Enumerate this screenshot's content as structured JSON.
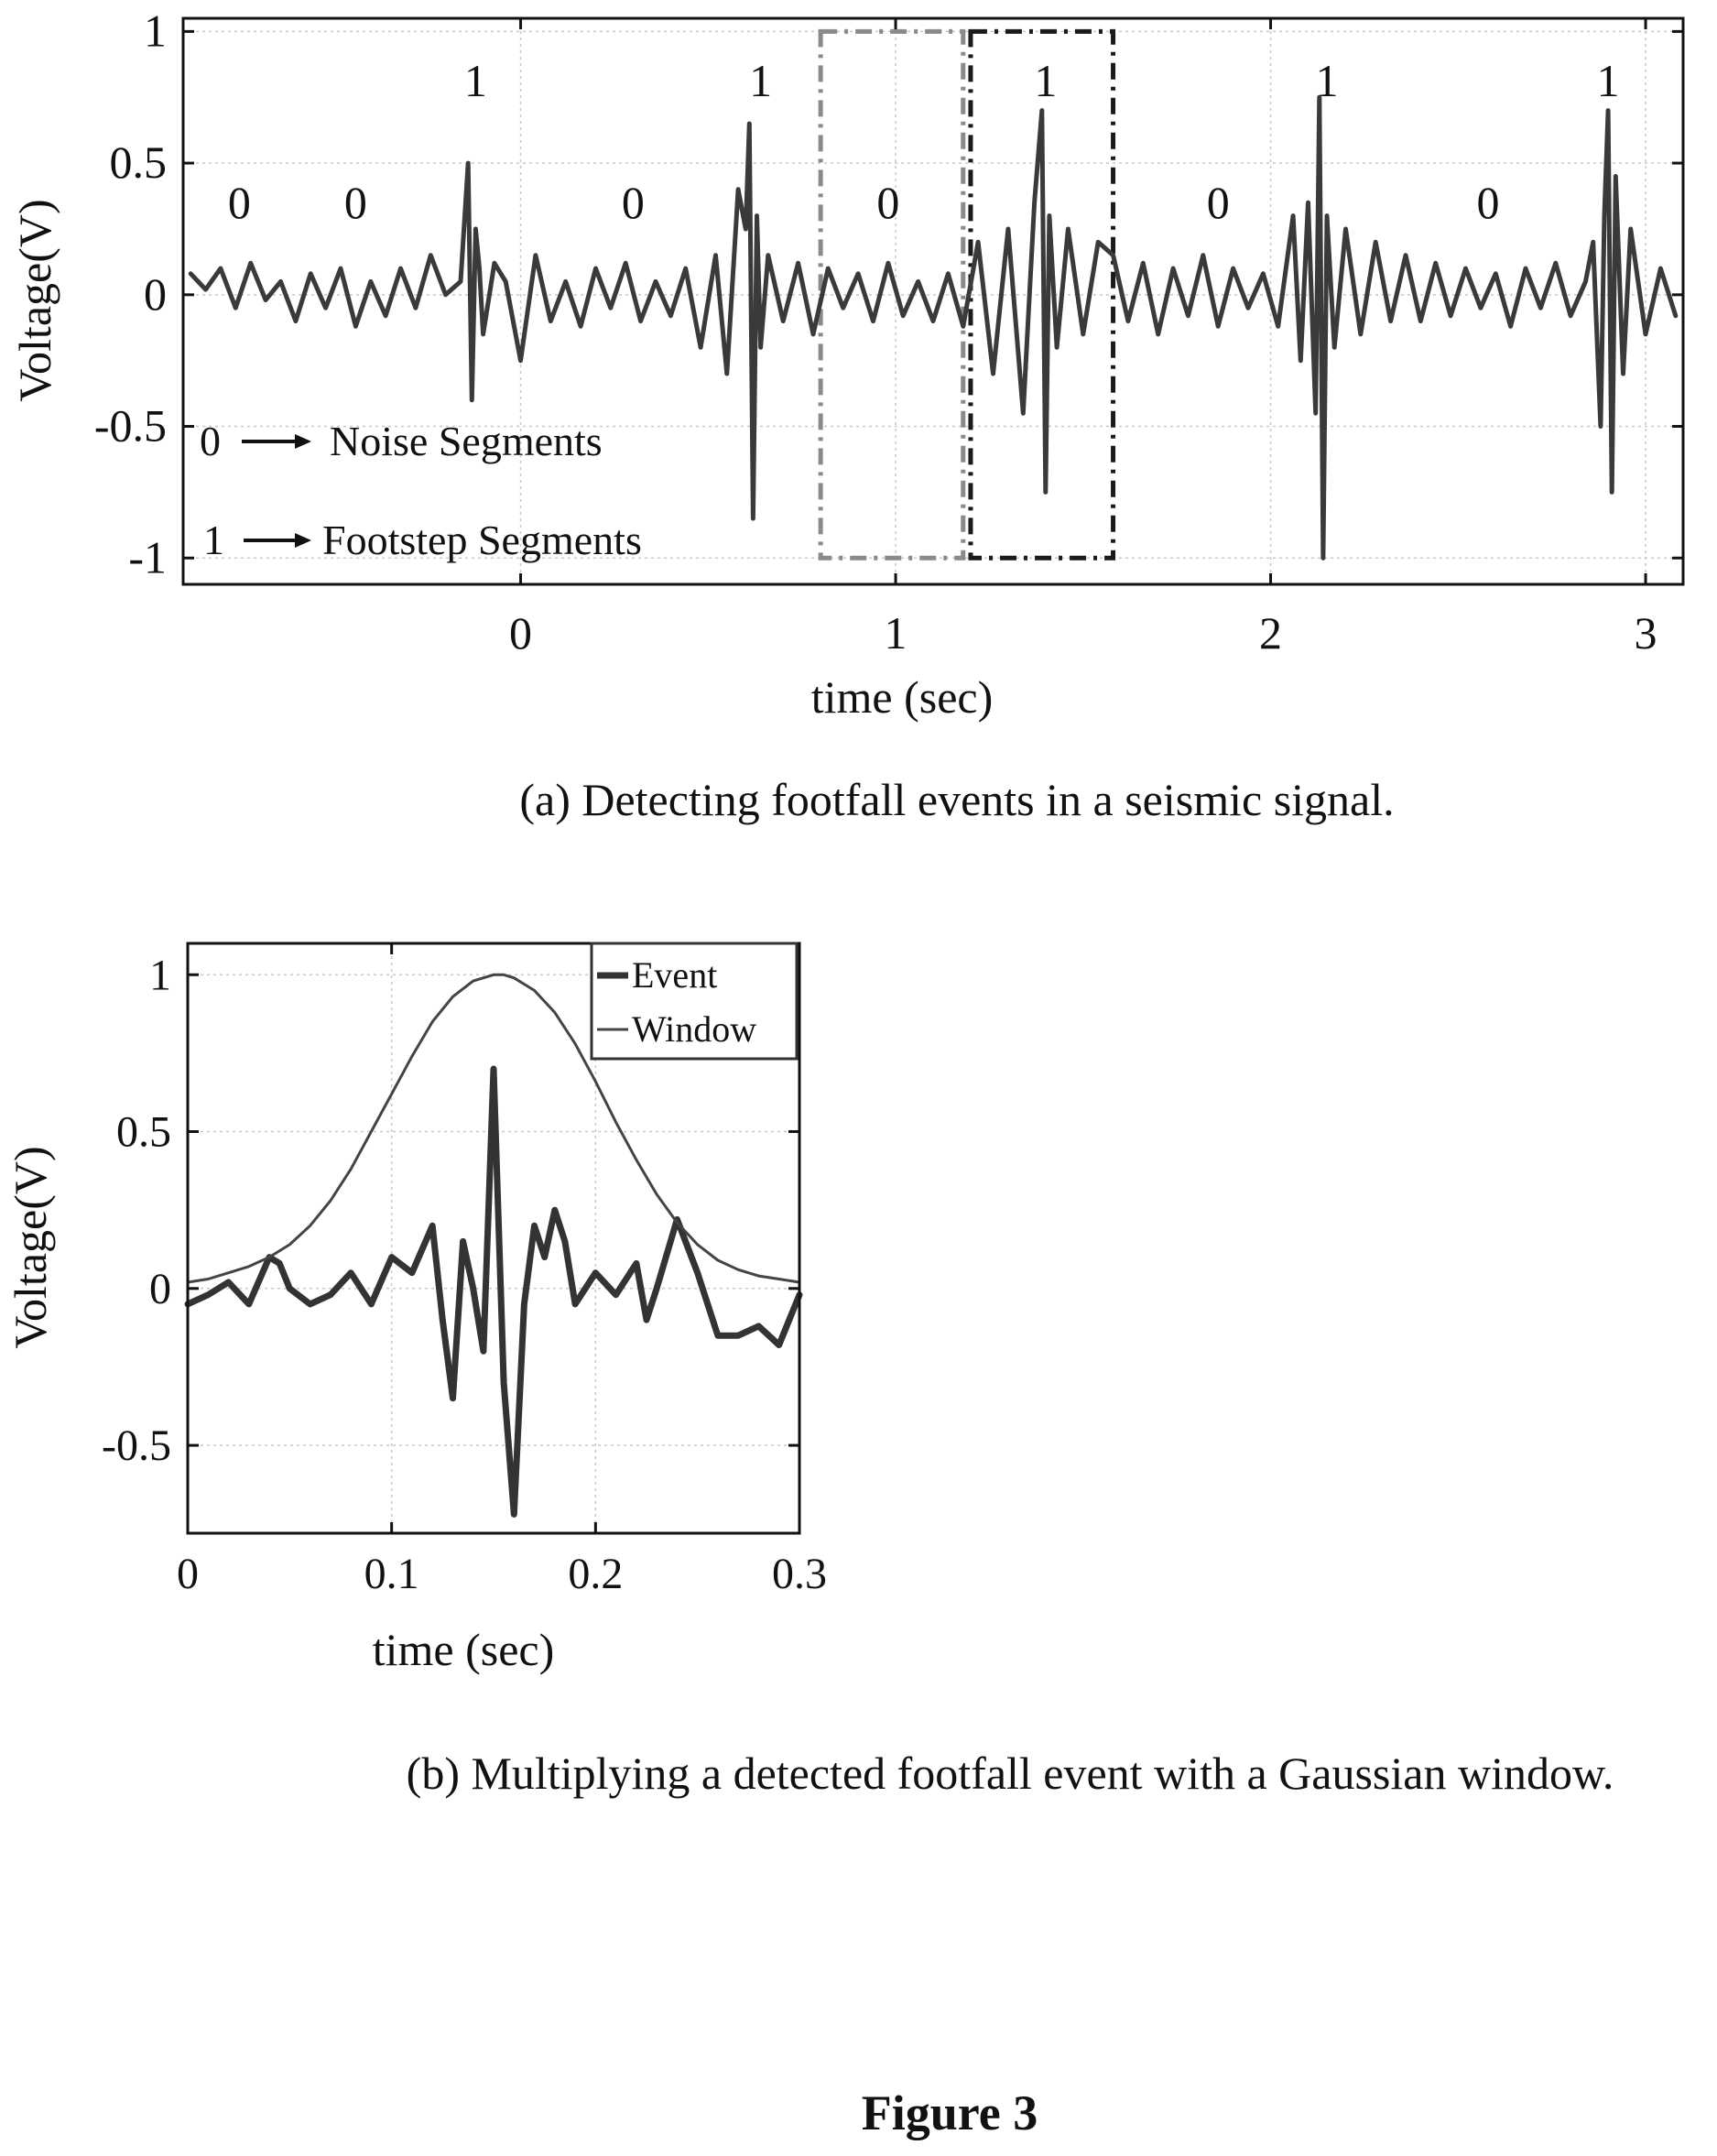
{
  "figure_label": "Figure 3",
  "chart_data": [
    {
      "type": "line",
      "caption": "(a) Detecting footfall events in a seismic signal.",
      "xlabel": "time (sec)",
      "ylabel": "Voltage(V)",
      "xlim": [
        -0.9,
        3.1
      ],
      "ylim": [
        -1.1,
        1.05
      ],
      "xticks": [
        0,
        1,
        2,
        3
      ],
      "xtick_labels": [
        "0",
        "1",
        "2",
        "3"
      ],
      "yticks": [
        1,
        0.5,
        0,
        -0.5,
        -1
      ],
      "ytick_labels": [
        "1",
        "0.5",
        "0",
        "-0.5",
        "-1"
      ],
      "grid": true,
      "series": [
        {
          "color": "#3a3a3a",
          "x": [
            -0.88,
            -0.84,
            -0.8,
            -0.76,
            -0.72,
            -0.68,
            -0.64,
            -0.6,
            -0.56,
            -0.52,
            -0.48,
            -0.44,
            -0.4,
            -0.36,
            -0.32,
            -0.28,
            -0.24,
            -0.2,
            -0.16,
            -0.14,
            -0.13,
            -0.12,
            -0.11,
            -0.1,
            -0.07,
            -0.04,
            0,
            0.04,
            0.08,
            0.12,
            0.16,
            0.2,
            0.24,
            0.28,
            0.32,
            0.36,
            0.4,
            0.44,
            0.48,
            0.52,
            0.55,
            0.58,
            0.6,
            0.61,
            0.62,
            0.63,
            0.64,
            0.66,
            0.7,
            0.74,
            0.78,
            0.82,
            0.86,
            0.9,
            0.94,
            0.98,
            1.02,
            1.06,
            1.1,
            1.14,
            1.18,
            1.22,
            1.26,
            1.3,
            1.34,
            1.37,
            1.39,
            1.4,
            1.41,
            1.43,
            1.46,
            1.5,
            1.54,
            1.58,
            1.62,
            1.66,
            1.7,
            1.74,
            1.78,
            1.82,
            1.86,
            1.9,
            1.94,
            1.98,
            2.02,
            2.06,
            2.08,
            2.1,
            2.12,
            2.13,
            2.14,
            2.15,
            2.17,
            2.2,
            2.24,
            2.28,
            2.32,
            2.36,
            2.4,
            2.44,
            2.48,
            2.52,
            2.56,
            2.6,
            2.64,
            2.68,
            2.72,
            2.76,
            2.8,
            2.84,
            2.86,
            2.88,
            2.89,
            2.9,
            2.91,
            2.92,
            2.94,
            2.96,
            3,
            3.04,
            3.08
          ],
          "y": [
            0.08,
            0.02,
            0.1,
            -0.05,
            0.12,
            -0.02,
            0.05,
            -0.1,
            0.08,
            -0.05,
            0.1,
            -0.12,
            0.05,
            -0.08,
            0.1,
            -0.05,
            0.15,
            0.0,
            0.05,
            0.5,
            -0.4,
            0.25,
            0.1,
            -0.15,
            0.12,
            0.05,
            -0.25,
            0.15,
            -0.1,
            0.05,
            -0.12,
            0.1,
            -0.05,
            0.12,
            -0.1,
            0.05,
            -0.08,
            0.1,
            -0.2,
            0.15,
            -0.3,
            0.4,
            0.25,
            0.65,
            -0.85,
            0.3,
            -0.2,
            0.15,
            -0.1,
            0.12,
            -0.15,
            0.1,
            -0.05,
            0.08,
            -0.1,
            0.12,
            -0.08,
            0.05,
            -0.1,
            0.08,
            -0.12,
            0.2,
            -0.3,
            0.25,
            -0.45,
            0.35,
            0.7,
            -0.75,
            0.3,
            -0.2,
            0.25,
            -0.15,
            0.2,
            0.15,
            -0.1,
            0.12,
            -0.15,
            0.1,
            -0.08,
            0.15,
            -0.12,
            0.1,
            -0.05,
            0.08,
            -0.12,
            0.3,
            -0.25,
            0.35,
            -0.45,
            0.75,
            -1.0,
            0.3,
            -0.2,
            0.25,
            -0.15,
            0.2,
            -0.1,
            0.15,
            -0.1,
            0.12,
            -0.08,
            0.1,
            -0.05,
            0.08,
            -0.12,
            0.1,
            -0.05,
            0.12,
            -0.08,
            0.05,
            0.2,
            -0.5,
            0.3,
            0.7,
            -0.75,
            0.45,
            -0.3,
            0.25,
            -0.15,
            0.1,
            -0.08
          ]
        }
      ],
      "annotations": {
        "ones_label": "1",
        "ones_x": [
          -0.12,
          0.64,
          1.4,
          2.15,
          2.9
        ],
        "zeros_label": "0",
        "zeros_x": [
          -0.75,
          -0.44,
          0.3,
          0.98,
          1.86,
          2.58
        ],
        "legend_noise": {
          "code": "0",
          "text": "Noise Segments"
        },
        "legend_footstep": {
          "code": "1",
          "text": "Footstep Segments"
        }
      },
      "highlight_boxes": [
        {
          "x0": 0.8,
          "x1": 1.18,
          "y0": -1.0,
          "y1": 1.0,
          "color": "#8a8a8a",
          "dash": "dash-dot"
        },
        {
          "x0": 1.2,
          "x1": 1.58,
          "y0": -1.0,
          "y1": 1.0,
          "color": "#1a1a1a",
          "dash": "dash-dot"
        }
      ]
    },
    {
      "type": "line",
      "caption": "(b) Multiplying a detected footfall event with a Gaussian window.",
      "xlabel": "time (sec)",
      "ylabel": "Voltage(V)",
      "xlim": [
        0,
        0.3
      ],
      "ylim": [
        -0.78,
        1.1
      ],
      "xticks": [
        0,
        0.1,
        0.2,
        0.3
      ],
      "xtick_labels": [
        "0",
        "0.1",
        "0.2",
        "0.3"
      ],
      "yticks": [
        1,
        0.5,
        0,
        -0.5
      ],
      "ytick_labels": [
        "1",
        "0.5",
        "0",
        "-0.5"
      ],
      "grid": true,
      "legend": {
        "position": "top-right"
      },
      "series": [
        {
          "name": "Event",
          "color": "#333333",
          "x": [
            0.0,
            0.01,
            0.02,
            0.03,
            0.04,
            0.045,
            0.05,
            0.06,
            0.07,
            0.08,
            0.09,
            0.1,
            0.11,
            0.12,
            0.125,
            0.13,
            0.135,
            0.14,
            0.145,
            0.15,
            0.155,
            0.16,
            0.165,
            0.17,
            0.175,
            0.18,
            0.185,
            0.19,
            0.2,
            0.21,
            0.22,
            0.225,
            0.23,
            0.24,
            0.25,
            0.26,
            0.27,
            0.28,
            0.29,
            0.3
          ],
          "y": [
            -0.05,
            -0.02,
            0.02,
            -0.05,
            0.1,
            0.08,
            0.0,
            -0.05,
            -0.02,
            0.05,
            -0.05,
            0.1,
            0.05,
            0.2,
            -0.1,
            -0.35,
            0.15,
            0.0,
            -0.2,
            0.7,
            -0.3,
            -0.72,
            -0.05,
            0.2,
            0.1,
            0.25,
            0.15,
            -0.05,
            0.05,
            -0.02,
            0.08,
            -0.1,
            0.0,
            0.22,
            0.05,
            -0.15,
            -0.15,
            -0.12,
            -0.18,
            -0.02
          ]
        },
        {
          "name": "Window",
          "color": "#444444",
          "x": [
            0,
            0.01,
            0.02,
            0.03,
            0.04,
            0.05,
            0.06,
            0.07,
            0.08,
            0.09,
            0.1,
            0.11,
            0.12,
            0.13,
            0.14,
            0.15,
            0.155,
            0.16,
            0.17,
            0.18,
            0.19,
            0.2,
            0.21,
            0.22,
            0.23,
            0.24,
            0.25,
            0.26,
            0.27,
            0.28,
            0.29,
            0.3
          ],
          "y": [
            0.02,
            0.03,
            0.05,
            0.07,
            0.1,
            0.14,
            0.2,
            0.28,
            0.38,
            0.5,
            0.62,
            0.74,
            0.85,
            0.93,
            0.98,
            1.0,
            1.0,
            0.99,
            0.95,
            0.88,
            0.78,
            0.66,
            0.53,
            0.41,
            0.3,
            0.21,
            0.14,
            0.09,
            0.06,
            0.04,
            0.03,
            0.02
          ]
        }
      ]
    }
  ]
}
